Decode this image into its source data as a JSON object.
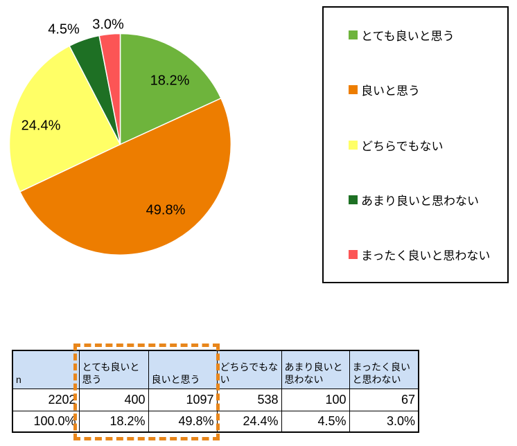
{
  "chart_data": {
    "type": "pie",
    "title": "",
    "categories": [
      "とても良いと思う",
      "良いと思う",
      "どちらでもない",
      "あまり良いと思わない",
      "まったく良いと思わない"
    ],
    "values": [
      18.2,
      49.8,
      24.4,
      4.5,
      3.0
    ],
    "counts": [
      400,
      1097,
      538,
      100,
      67
    ],
    "n": 2202,
    "slice_labels": [
      "18.2%",
      "49.8%",
      "24.4%",
      "4.5%",
      "3.0%"
    ],
    "colors": [
      "#6EB43C",
      "#ED7D00",
      "#FFFF66",
      "#1E7024",
      "#FC5555"
    ],
    "legend_position": "right",
    "start_angle_deg": 0,
    "direction": "clockwise"
  },
  "legend": {
    "items": [
      {
        "label": "とても良いと思う",
        "color": "#6EB43C"
      },
      {
        "label": "良いと思う",
        "color": "#ED7D00"
      },
      {
        "label": "どちらでもない",
        "color": "#FFFF66"
      },
      {
        "label": "あまり良いと思わない",
        "color": "#1E7024"
      },
      {
        "label": "まったく良いと思わない",
        "color": "#FC5555"
      }
    ]
  },
  "table": {
    "headers": [
      "n",
      "とても良いと思う",
      "良いと思う",
      "どちらでもない",
      "あまり良いと思わない",
      "まったく良いと思わない"
    ],
    "counts_row": [
      "2202",
      "400",
      "1097",
      "538",
      "100",
      "67"
    ],
    "percent_row": [
      "100.0%",
      "18.2%",
      "49.8%",
      "24.4%",
      "4.5%",
      "3.0%"
    ],
    "header_bg": "#CDDFF5",
    "highlight_color": "#E8861B"
  }
}
